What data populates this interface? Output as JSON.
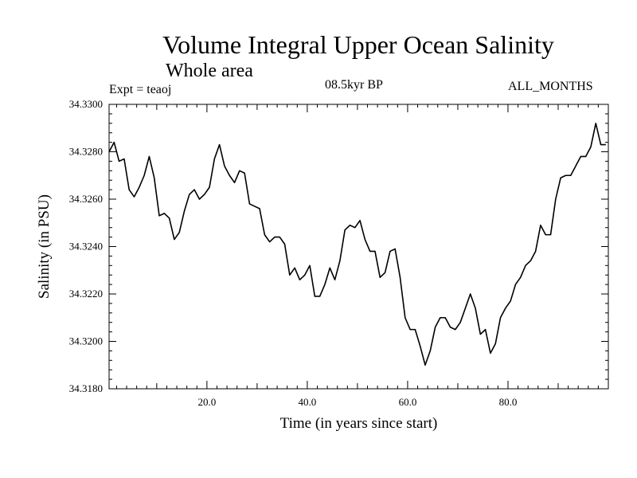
{
  "chart_data": {
    "type": "line",
    "title": "Volume Integral Upper Ocean Salinity",
    "subtitle": "Whole area",
    "expt_label": "Expt = teaoj",
    "period_label": "08.5kyr BP",
    "months_label": "ALL_MONTHS",
    "xlabel": "Time (in years since start)",
    "ylabel": "Salinity (in PSU)",
    "xlim": [
      0.5,
      100.0
    ],
    "ylim": [
      34.318,
      34.33
    ],
    "xticks": [
      20.0,
      40.0,
      60.0,
      80.0
    ],
    "xtick_labels": [
      "20.0",
      "40.0",
      "60.0",
      "80.0"
    ],
    "yticks": [
      34.318,
      34.32,
      34.322,
      34.324,
      34.326,
      34.328,
      34.33
    ],
    "ytick_labels": [
      "34.3180",
      "34.3200",
      "34.3220",
      "34.3240",
      "34.3260",
      "34.3280",
      "34.3300"
    ],
    "grid": false,
    "series": [
      {
        "name": "Salinity",
        "x": [
          0.5,
          1.5,
          2.5,
          3.5,
          4.5,
          5.5,
          6.5,
          7.5,
          8.5,
          9.5,
          10.5,
          11.5,
          12.5,
          13.5,
          14.5,
          15.5,
          16.5,
          17.5,
          18.5,
          19.5,
          20.5,
          21.5,
          22.5,
          23.5,
          24.5,
          25.5,
          26.5,
          27.5,
          28.5,
          29.5,
          30.5,
          31.5,
          32.5,
          33.5,
          34.5,
          35.5,
          36.5,
          37.5,
          38.5,
          39.5,
          40.5,
          41.5,
          42.5,
          43.5,
          44.5,
          45.5,
          46.5,
          47.5,
          48.5,
          49.5,
          50.5,
          51.5,
          52.5,
          53.5,
          54.5,
          55.5,
          56.5,
          57.5,
          58.5,
          59.5,
          60.5,
          61.5,
          62.5,
          63.5,
          64.5,
          65.5,
          66.5,
          67.5,
          68.5,
          69.5,
          70.5,
          71.5,
          72.5,
          73.5,
          74.5,
          75.5,
          76.5,
          77.5,
          78.5,
          79.5,
          80.5,
          81.5,
          82.5,
          83.5,
          84.5,
          85.5,
          86.5,
          87.5,
          88.5,
          89.5,
          90.5,
          91.5,
          92.5,
          93.5,
          94.5,
          95.5,
          96.5,
          97.5,
          98.5,
          99.5
        ],
        "values": [
          34.328,
          34.3284,
          34.3276,
          34.3277,
          34.3264,
          34.3261,
          34.3265,
          34.327,
          34.3278,
          34.3269,
          34.3253,
          34.3254,
          34.3252,
          34.3243,
          34.3246,
          34.3255,
          34.3262,
          34.3264,
          34.326,
          34.3262,
          34.3265,
          34.3277,
          34.3283,
          34.3274,
          34.327,
          34.3267,
          34.3272,
          34.3271,
          34.3258,
          34.3257,
          34.3256,
          34.3245,
          34.3242,
          34.3244,
          34.3244,
          34.3241,
          34.3228,
          34.3231,
          34.3226,
          34.3228,
          34.3232,
          34.3219,
          34.3219,
          34.3224,
          34.3231,
          34.3226,
          34.3234,
          34.3247,
          34.3249,
          34.3248,
          34.3251,
          34.3243,
          34.3238,
          34.3238,
          34.3227,
          34.3229,
          34.3238,
          34.3239,
          34.3227,
          34.321,
          34.3205,
          34.3205,
          34.3198,
          34.319,
          34.3196,
          34.3206,
          34.321,
          34.321,
          34.3206,
          34.3205,
          34.3208,
          34.3214,
          34.322,
          34.3214,
          34.3203,
          34.3205,
          34.3195,
          34.3199,
          34.321,
          34.3214,
          34.3217,
          34.3224,
          34.3227,
          34.3232,
          34.3234,
          34.3238,
          34.3249,
          34.3245,
          34.3245,
          34.326,
          34.3269,
          34.327,
          34.327,
          34.3274,
          34.3278,
          34.3278,
          34.3282,
          34.3292,
          34.3283,
          34.3283
        ]
      }
    ]
  }
}
